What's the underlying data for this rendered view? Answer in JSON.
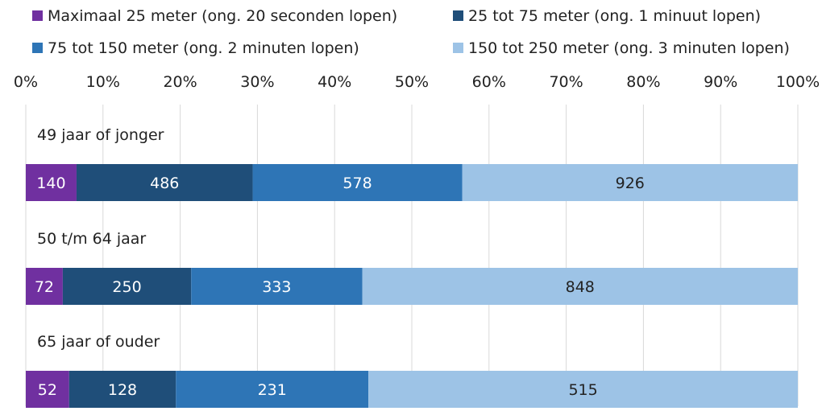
{
  "chart_data": {
    "type": "bar",
    "orientation": "horizontal",
    "stacked": true,
    "normalized": "percent",
    "x_axis": {
      "range": [
        0,
        100
      ],
      "ticks": [
        "0%",
        "10%",
        "20%",
        "30%",
        "40%",
        "50%",
        "60%",
        "70%",
        "80%",
        "90%",
        "100%"
      ],
      "position": "top"
    },
    "grid": true,
    "legend_position": "top",
    "categories": [
      "49 jaar of jonger",
      "50 t/m 64 jaar",
      "65 jaar of ouder"
    ],
    "series": [
      {
        "name": "Maximaal 25 meter (ong. 20 seconden lopen)",
        "color": "#7030a0",
        "label_color": "#ffffff",
        "values": [
          140,
          72,
          52
        ]
      },
      {
        "name": "25 tot 75 meter (ong. 1 minuut lopen)",
        "color": "#1f4e79",
        "label_color": "#ffffff",
        "values": [
          486,
          250,
          128
        ]
      },
      {
        "name": "75 tot 150 meter (ong. 2 minuten lopen)",
        "color": "#2e75b6",
        "label_color": "#ffffff",
        "values": [
          578,
          333,
          231
        ]
      },
      {
        "name": "150 tot 250 meter (ong. 3 minuten lopen)",
        "color": "#9dc3e6",
        "label_color": "#222222",
        "values": [
          926,
          848,
          515
        ]
      }
    ]
  }
}
